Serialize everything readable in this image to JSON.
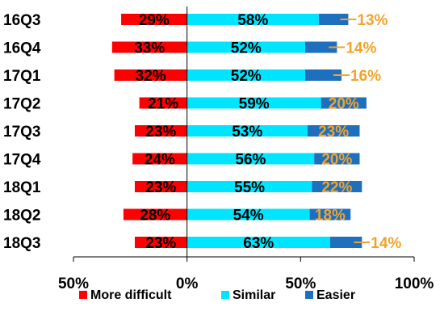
{
  "chart_data": {
    "type": "bar",
    "orientation": "horizontal",
    "stacked": true,
    "diverging": true,
    "title": "",
    "xlabel": "",
    "ylabel": "",
    "categories": [
      "16Q3",
      "16Q4",
      "17Q1",
      "17Q2",
      "17Q3",
      "17Q4",
      "18Q1",
      "18Q2",
      "18Q3"
    ],
    "series": [
      {
        "name": "More difficult",
        "color": "#ff0000",
        "values": [
          29,
          33,
          32,
          21,
          23,
          24,
          23,
          28,
          23
        ],
        "labels": [
          "29%",
          "33%",
          "32%",
          "21%",
          "23%",
          "24%",
          "23%",
          "28%",
          "23%"
        ]
      },
      {
        "name": "Similar",
        "color": "#00e5ff",
        "values": [
          58,
          52,
          52,
          59,
          53,
          56,
          55,
          54,
          63
        ],
        "labels": [
          "58%",
          "52%",
          "52%",
          "59%",
          "53%",
          "56%",
          "55%",
          "54%",
          "63%"
        ]
      },
      {
        "name": "Easier",
        "color": "#1f6fbf",
        "values": [
          13,
          14,
          16,
          20,
          23,
          20,
          22,
          18,
          14
        ],
        "labels": [
          "13%",
          "14%",
          "16%",
          "20%",
          "23%",
          "20%",
          "22%",
          "18%",
          "14%"
        ]
      }
    ],
    "xlim": [
      -50,
      100
    ],
    "xticks": [
      -50,
      0,
      50,
      100
    ],
    "xtick_labels": [
      "50%",
      "0%",
      "50%",
      "100%"
    ],
    "easier_label_style": "leader-line",
    "easier_label_color": "#f2a32a",
    "legend": {
      "position": "bottom",
      "entries": [
        "More difficult",
        "Similar",
        "Easier"
      ]
    },
    "grid": false
  }
}
